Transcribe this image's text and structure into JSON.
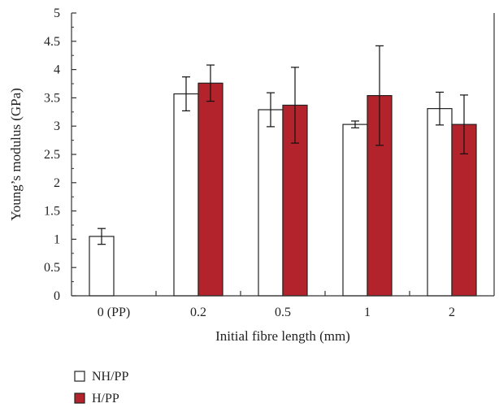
{
  "chart_data": {
    "type": "bar",
    "xlabel": "Initial fibre length (mm)",
    "ylabel": "Young’s modulus (GPa)",
    "categories": [
      "0 (PP)",
      "0.2",
      "0.5",
      "1",
      "2"
    ],
    "ylim": [
      0,
      5
    ],
    "yticks": [
      "0",
      "0.5",
      "1",
      "1.5",
      "2",
      "2.5",
      "3",
      "3.5",
      "4",
      "4.5",
      "5"
    ],
    "grid": false,
    "legend_position": "bottom-left",
    "series": [
      {
        "name": "NH/PP",
        "color": "#ffffff",
        "values": [
          1.05,
          3.57,
          3.29,
          3.03,
          3.31
        ],
        "errors": [
          0.14,
          0.3,
          0.3,
          0.06,
          0.29
        ]
      },
      {
        "name": "H/PP",
        "color": "#b3232b",
        "values": [
          null,
          3.76,
          3.37,
          3.54,
          3.03
        ],
        "errors": [
          null,
          0.32,
          0.67,
          0.88,
          0.52
        ]
      }
    ]
  }
}
